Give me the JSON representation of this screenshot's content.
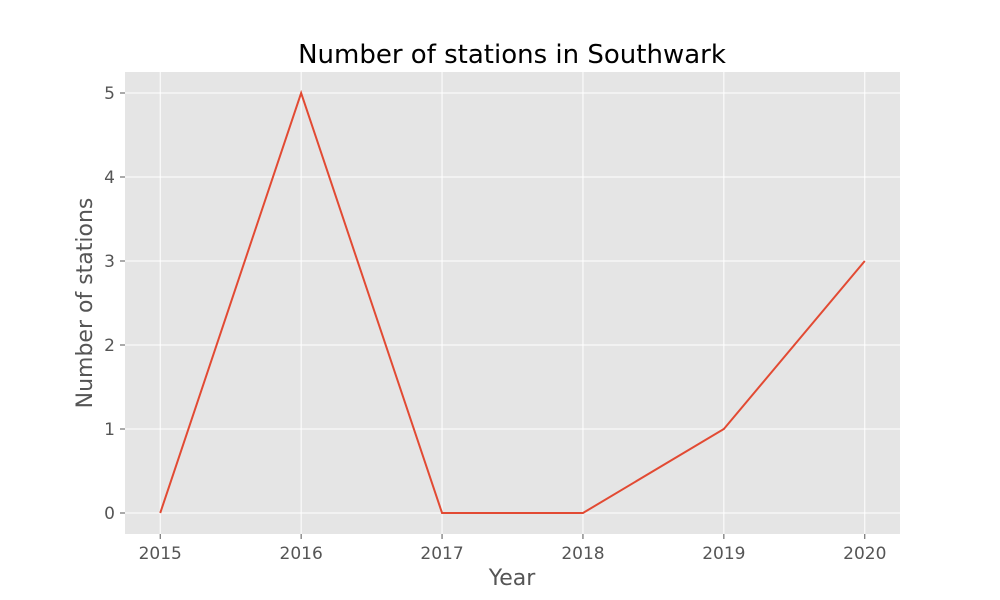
{
  "colors": {
    "plot_background": "#e5e5e5",
    "grid": "#ffffff",
    "line": "#e24a33",
    "tick": "#555555",
    "text": "#555555",
    "title": "#000000"
  },
  "chart_data": {
    "type": "line",
    "title": "Number of stations in Southwark",
    "xlabel": "Year",
    "ylabel": "Number of stations",
    "x": [
      2015,
      2016,
      2017,
      2018,
      2019,
      2020
    ],
    "xticks": [
      "2015",
      "2016",
      "2017",
      "2018",
      "2019",
      "2020"
    ],
    "yticks": [
      "0",
      "1",
      "2",
      "3",
      "4",
      "5"
    ],
    "xlim": [
      2014.75,
      2020.25
    ],
    "ylim": [
      -0.25,
      5.25
    ],
    "grid": true,
    "series": [
      {
        "values": [
          0,
          5,
          0,
          0,
          1,
          3
        ]
      }
    ]
  }
}
